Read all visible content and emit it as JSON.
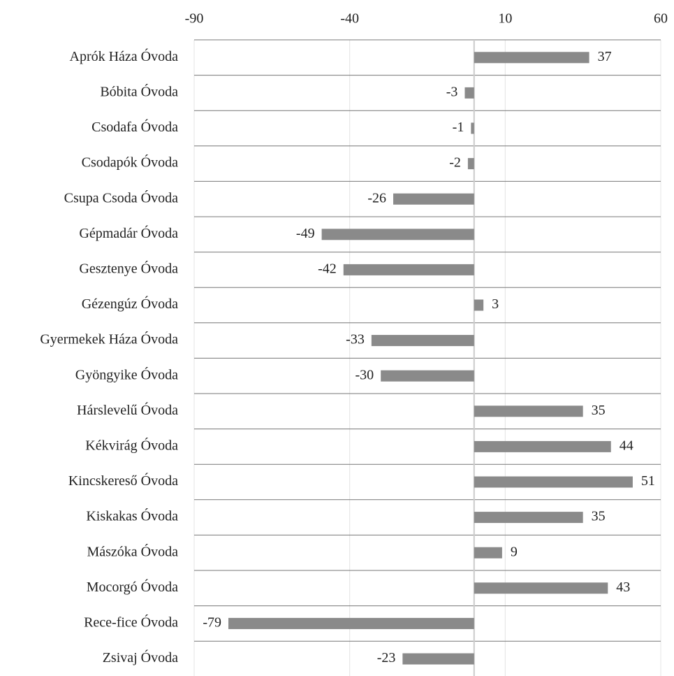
{
  "chart_data": {
    "type": "bar",
    "orientation": "horizontal",
    "categories": [
      "Aprók Háza Óvoda",
      "Bóbita Óvoda",
      "Csodafa Óvoda",
      "Csodapók Óvoda",
      "Csupa Csoda Óvoda",
      "Gépmadár Óvoda",
      "Gesztenye Óvoda",
      "Gézengúz Óvoda",
      "Gyermekek Háza Óvoda",
      "Gyöngyike Óvoda",
      "Hárslevelű Óvoda",
      "Kékvirág Óvoda",
      "Kincskereső Óvoda",
      "Kiskakas Óvoda",
      "Mászóka Óvoda",
      "Mocorgó Óvoda",
      "Rece-fice Óvoda",
      "Zsivaj Óvoda"
    ],
    "values": [
      37,
      -3,
      -1,
      -2,
      -26,
      -49,
      -42,
      3,
      -33,
      -30,
      35,
      44,
      51,
      35,
      9,
      43,
      -79,
      -23
    ],
    "color": "#8a8a8a",
    "xlim": [
      -90,
      60
    ],
    "xticks": [
      -90,
      -40,
      10,
      60
    ],
    "grid": true
  }
}
